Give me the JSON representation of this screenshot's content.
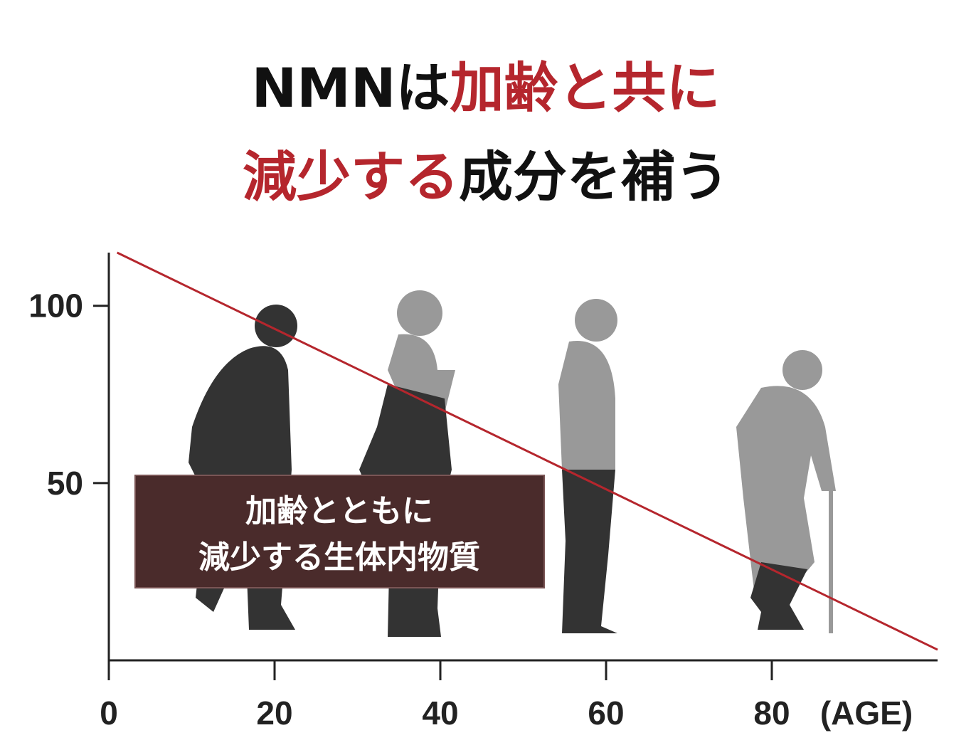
{
  "chart_data": {
    "type": "line",
    "title_lines": [
      [
        {
          "text": "NMNは",
          "color": "#111111"
        },
        {
          "text": "加齢と共に",
          "color": "#b5262d"
        }
      ],
      [
        {
          "text": "減少する",
          "color": "#b5262d"
        },
        {
          "text": "成分を補う",
          "color": "#111111"
        }
      ]
    ],
    "x": [
      1,
      100
    ],
    "values": [
      115,
      3
    ],
    "color": "#b5262d",
    "xlim": [
      0,
      100
    ],
    "xticks": [
      0,
      20,
      40,
      60,
      80
    ],
    "ylim": [
      0,
      115
    ],
    "yticks": [
      50,
      100
    ],
    "x_axis_label": "(AGE)",
    "annotation_lines": [
      "加齢とともに",
      "減少する生体内物質"
    ]
  }
}
